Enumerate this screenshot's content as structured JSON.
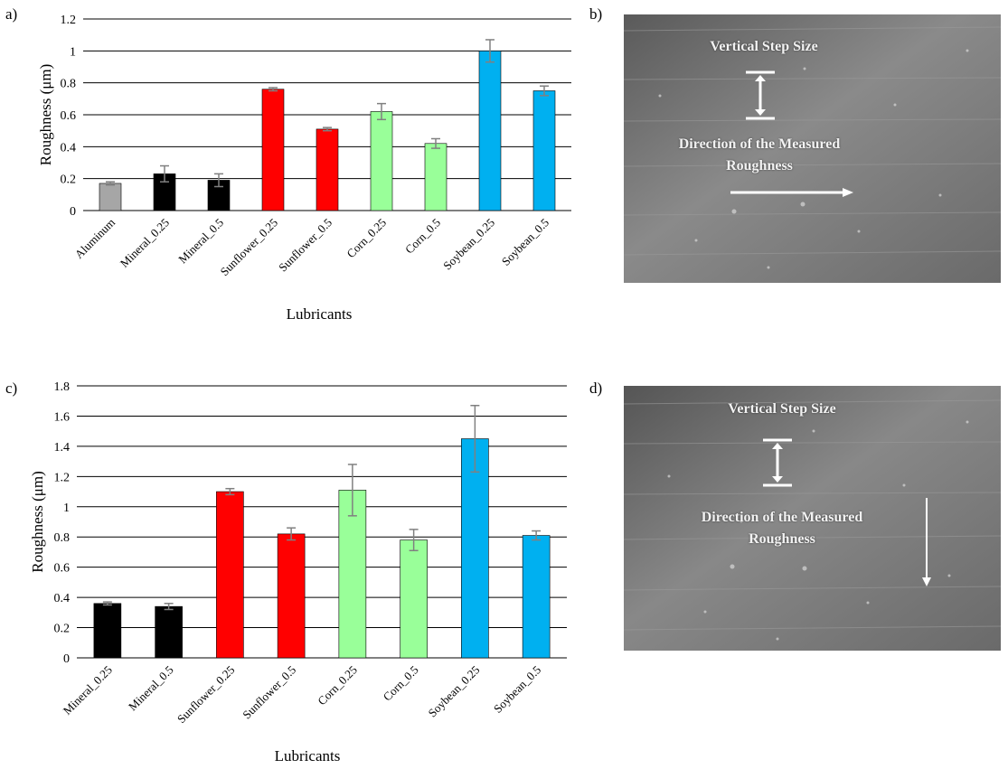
{
  "panels": {
    "a": "a)",
    "b": "b)",
    "c": "c)",
    "d": "d)"
  },
  "colors": {
    "aluminum": "#a6a6a6",
    "mineral": "#000000",
    "sunflower": "#ff0000",
    "corn": "#99ff99",
    "soybean": "#00b0f0",
    "grid": "#000000",
    "error_bar": "#808080"
  },
  "sem_b": {
    "step_label": "Vertical Step Size",
    "direction_label_line1": "Direction of the Measured",
    "direction_label_line2": "Roughness",
    "arrow_direction": "horizontal"
  },
  "sem_d": {
    "step_label": "Vertical Step Size",
    "direction_label_line1": "Direction of the Measured",
    "direction_label_line2": "Roughness",
    "arrow_direction": "vertical"
  },
  "chart_data": [
    {
      "type": "bar",
      "panel": "a",
      "title": "",
      "xlabel": "Lubricants",
      "ylabel": "Roughness  (μm)",
      "ylim": [
        0,
        1.2
      ],
      "yticks": [
        0,
        0.2,
        0.4,
        0.6,
        0.8,
        1,
        1.2
      ],
      "ytick_labels": [
        "0",
        "0.2",
        "0.4",
        "0.6",
        "0.8",
        "1",
        "1.2"
      ],
      "grid": true,
      "categories": [
        "Aluminum",
        "Mineral_0.25",
        "Mineral_0.5",
        "Sunflower_0.25",
        "Sunflower_0.5",
        "Corn_0.25",
        "Corn_0.5",
        "Soybean_0.25",
        "Soybean_0.5"
      ],
      "values": [
        0.17,
        0.23,
        0.19,
        0.76,
        0.51,
        0.62,
        0.42,
        1.0,
        0.75
      ],
      "errors": [
        0.01,
        0.05,
        0.04,
        0.01,
        0.01,
        0.05,
        0.03,
        0.07,
        0.03
      ],
      "bar_colors": [
        "aluminum",
        "mineral",
        "mineral",
        "sunflower",
        "sunflower",
        "corn",
        "corn",
        "soybean",
        "soybean"
      ]
    },
    {
      "type": "bar",
      "panel": "c",
      "title": "",
      "xlabel": "Lubricants",
      "ylabel": "Roughness  (μm)",
      "ylim": [
        0,
        1.8
      ],
      "yticks": [
        0,
        0.2,
        0.4,
        0.6,
        0.8,
        1,
        1.2,
        1.4,
        1.6,
        1.8
      ],
      "ytick_labels": [
        "0",
        "0.2",
        "0.4",
        "0.6",
        "0.8",
        "1",
        "1.2",
        "1.4",
        "1.6",
        "1.8"
      ],
      "grid": true,
      "categories": [
        "Mineral_0.25",
        "Mineral_0.5",
        "Sunflower_0.25",
        "Sunflower_0.5",
        "Corn_0.25",
        "Corn_0.5",
        "Soybean_0.25",
        "Soybean_0.5"
      ],
      "values": [
        0.36,
        0.34,
        1.1,
        0.82,
        1.11,
        0.78,
        1.45,
        0.81
      ],
      "errors": [
        0.01,
        0.02,
        0.02,
        0.04,
        0.17,
        0.07,
        0.22,
        0.03
      ],
      "bar_colors": [
        "mineral",
        "mineral",
        "sunflower",
        "sunflower",
        "corn",
        "corn",
        "soybean",
        "soybean"
      ]
    }
  ]
}
